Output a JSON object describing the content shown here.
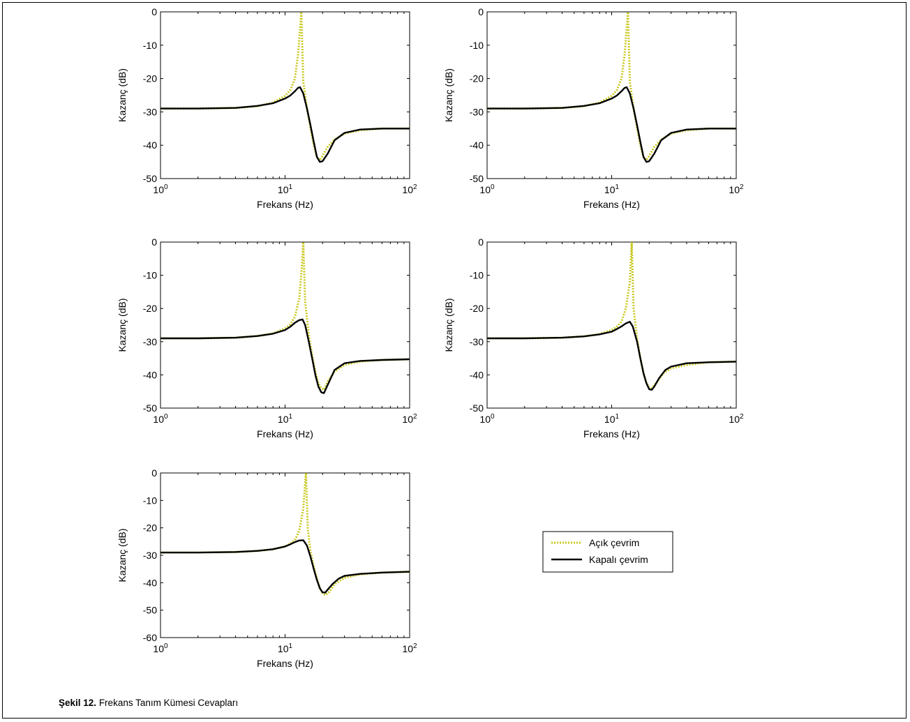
{
  "caption": {
    "label": "Şekil 12.",
    "text": "Frekans Tanım Kümesi Cevapları"
  },
  "legend": {
    "placement": "right-of-bottom-plot",
    "entries": [
      {
        "label": "Açık çevrim",
        "color": "#c8c81e",
        "style": "dotted"
      },
      {
        "label": "Kapalı çevrim",
        "color": "#000000",
        "style": "solid"
      }
    ]
  },
  "chart_data": [
    {
      "type": "line",
      "xlabel": "Frekans (Hz)",
      "ylabel": "Kazanç (dB)",
      "xscale": "log",
      "xlim": [
        1,
        100
      ],
      "ylim": [
        -50,
        0
      ],
      "yticks": [
        0,
        -10,
        -20,
        -30,
        -40,
        -50
      ],
      "xticks": [
        1,
        10,
        100
      ],
      "grid": false,
      "series": [
        {
          "name": "Açık çevrim",
          "x": [
            1,
            2,
            4,
            6,
            8,
            10,
            11,
            12,
            12.7,
            13.2,
            13.5,
            14,
            15,
            16,
            17,
            18,
            19,
            20,
            22,
            25,
            30,
            40,
            60,
            100
          ],
          "y": [
            -29,
            -29,
            -28.8,
            -28.3,
            -27.2,
            -25.2,
            -23.5,
            -20,
            -13,
            -5,
            0,
            -21,
            -29,
            -35,
            -40,
            -43.5,
            -44.5,
            -43.2,
            -40.5,
            -38.3,
            -36.5,
            -35.5,
            -35,
            -35
          ]
        },
        {
          "name": "Kapalı çevrim",
          "x": [
            1,
            2,
            4,
            6,
            8,
            10,
            11,
            12,
            12.7,
            13.2,
            14,
            15,
            16,
            17,
            18,
            19,
            20,
            22,
            25,
            30,
            40,
            60,
            100
          ],
          "y": [
            -29,
            -29,
            -28.8,
            -28.2,
            -27.4,
            -26,
            -25.1,
            -23.8,
            -22.8,
            -22.6,
            -24.5,
            -29,
            -34,
            -39,
            -43.5,
            -45,
            -44.8,
            -42.5,
            -38.5,
            -36.3,
            -35.3,
            -35,
            -35
          ]
        }
      ]
    },
    {
      "type": "line",
      "xlabel": "Frekans (Hz)",
      "ylabel": "Kazanç (dB)",
      "xscale": "log",
      "xlim": [
        1,
        100
      ],
      "ylim": [
        -50,
        0
      ],
      "yticks": [
        0,
        -10,
        -20,
        -30,
        -40,
        -50
      ],
      "xticks": [
        1,
        10,
        100
      ],
      "grid": false,
      "series": [
        {
          "name": "Açık çevrim",
          "x": [
            1,
            2,
            4,
            6,
            8,
            10,
            11,
            12,
            12.7,
            13.2,
            13.5,
            14,
            15,
            16,
            17,
            18,
            19,
            20,
            22,
            25,
            30,
            40,
            60,
            100
          ],
          "y": [
            -29,
            -29,
            -28.8,
            -28.3,
            -27.2,
            -25.2,
            -23.5,
            -20,
            -13,
            -5,
            0,
            -21,
            -29,
            -35,
            -40,
            -43.5,
            -44.5,
            -43.2,
            -40.5,
            -38.3,
            -36.5,
            -35.5,
            -35,
            -35
          ]
        },
        {
          "name": "Kapalı çevrim",
          "x": [
            1,
            2,
            4,
            6,
            8,
            10,
            11,
            12,
            12.7,
            13.2,
            14,
            15,
            16,
            17,
            18,
            19,
            20,
            22,
            25,
            30,
            40,
            60,
            100
          ],
          "y": [
            -29,
            -29,
            -28.8,
            -28.2,
            -27.4,
            -26,
            -25.1,
            -23.8,
            -22.8,
            -22.6,
            -24.5,
            -29,
            -34,
            -39,
            -43.5,
            -45,
            -44.8,
            -42.5,
            -38.5,
            -36.3,
            -35.3,
            -35,
            -35
          ]
        }
      ]
    },
    {
      "type": "line",
      "xlabel": "Frekans (Hz)",
      "ylabel": "Kazanç (dB)",
      "xscale": "log",
      "xlim": [
        1,
        100
      ],
      "ylim": [
        -50,
        0
      ],
      "yticks": [
        0,
        -10,
        -20,
        -30,
        -40,
        -50
      ],
      "xticks": [
        1,
        10,
        100
      ],
      "grid": false,
      "series": [
        {
          "name": "Açık çevrim",
          "x": [
            1,
            2,
            4,
            6,
            8,
            10,
            11,
            12,
            13,
            13.6,
            14,
            14.5,
            15.5,
            16.5,
            17.5,
            18.5,
            19.5,
            20.5,
            22,
            25,
            30,
            40,
            60,
            100
          ],
          "y": [
            -29,
            -29,
            -28.8,
            -28.3,
            -27.5,
            -26,
            -24.8,
            -22.5,
            -17,
            -8,
            0,
            -18,
            -28,
            -34,
            -39,
            -42.5,
            -44,
            -44.5,
            -42,
            -39,
            -37,
            -36,
            -35.5,
            -35.3
          ]
        },
        {
          "name": "Kapalı çevrim",
          "x": [
            1,
            2,
            4,
            6,
            8,
            10,
            11,
            12,
            13,
            13.8,
            14.5,
            15.5,
            16.5,
            17.5,
            18.5,
            19.5,
            20.5,
            22,
            25,
            30,
            40,
            60,
            100
          ],
          "y": [
            -29,
            -29,
            -28.8,
            -28.3,
            -27.6,
            -26.5,
            -25.5,
            -24.3,
            -23.5,
            -23.3,
            -25,
            -30,
            -35,
            -40,
            -43.5,
            -45.2,
            -45.5,
            -43,
            -38.5,
            -36.5,
            -35.8,
            -35.5,
            -35.3
          ]
        }
      ]
    },
    {
      "type": "line",
      "xlabel": "Frekans (Hz)",
      "ylabel": "Kazanç (dB)",
      "xscale": "log",
      "xlim": [
        1,
        100
      ],
      "ylim": [
        -50,
        0
      ],
      "yticks": [
        0,
        -10,
        -20,
        -30,
        -40,
        -50
      ],
      "xticks": [
        1,
        10,
        100
      ],
      "grid": false,
      "series": [
        {
          "name": "Açık çevrim",
          "x": [
            1,
            2,
            4,
            6,
            8,
            10,
            11,
            12,
            13,
            14,
            14.5,
            15,
            16,
            17,
            18,
            19,
            20,
            21,
            23,
            26,
            30,
            40,
            60,
            100
          ],
          "y": [
            -29,
            -29,
            -28.8,
            -28.4,
            -27.7,
            -26.5,
            -25.5,
            -24,
            -20,
            -12,
            0,
            -20,
            -29,
            -35,
            -39.5,
            -42.5,
            -43.8,
            -44,
            -42.3,
            -39.5,
            -38,
            -37,
            -36.2,
            -36
          ]
        },
        {
          "name": "Kapalı çevrim",
          "x": [
            1,
            2,
            4,
            6,
            8,
            10,
            11,
            12,
            13,
            14,
            14.8,
            16,
            17,
            18,
            19,
            20,
            21,
            22,
            24,
            27,
            30,
            40,
            60,
            100
          ],
          "y": [
            -29,
            -29,
            -28.8,
            -28.4,
            -27.8,
            -27,
            -26.2,
            -25.4,
            -24.5,
            -24,
            -25.5,
            -30,
            -35,
            -39.5,
            -42.5,
            -44.3,
            -44.5,
            -43.5,
            -41,
            -38.5,
            -37.5,
            -36.5,
            -36.2,
            -36
          ]
        }
      ]
    },
    {
      "type": "line",
      "xlabel": "Frekans (Hz)",
      "ylabel": "Kazanç (dB)",
      "xscale": "log",
      "xlim": [
        1,
        100
      ],
      "ylim": [
        -60,
        0
      ],
      "yticks": [
        0,
        -10,
        -20,
        -30,
        -40,
        -50,
        -60
      ],
      "xticks": [
        1,
        10,
        100
      ],
      "grid": false,
      "series": [
        {
          "name": "Açık çevrim",
          "x": [
            1,
            2,
            4,
            6,
            8,
            10,
            11,
            12,
            13,
            14,
            14.7,
            15.2,
            16,
            17,
            18,
            19,
            20,
            21,
            22.5,
            25,
            30,
            40,
            60,
            100
          ],
          "y": [
            -29,
            -29,
            -28.8,
            -28.4,
            -27.8,
            -26.8,
            -25.8,
            -24.5,
            -21,
            -13,
            0,
            -20,
            -28.5,
            -34,
            -38.5,
            -42,
            -43.8,
            -44.5,
            -43.5,
            -40.5,
            -38.2,
            -37,
            -36.3,
            -36
          ]
        },
        {
          "name": "Kapalı çevrim",
          "x": [
            1,
            2,
            4,
            6,
            8,
            10,
            11,
            12,
            13,
            14,
            15,
            16,
            17,
            18,
            19,
            20,
            21,
            22,
            24,
            27,
            30,
            40,
            60,
            100
          ],
          "y": [
            -29,
            -29,
            -28.8,
            -28.4,
            -27.8,
            -26.8,
            -26,
            -25.2,
            -24.6,
            -24.5,
            -26.5,
            -30.5,
            -35,
            -39,
            -42,
            -43.5,
            -43.6,
            -42.5,
            -40.5,
            -38.5,
            -37.5,
            -36.8,
            -36.3,
            -36
          ]
        }
      ]
    }
  ]
}
